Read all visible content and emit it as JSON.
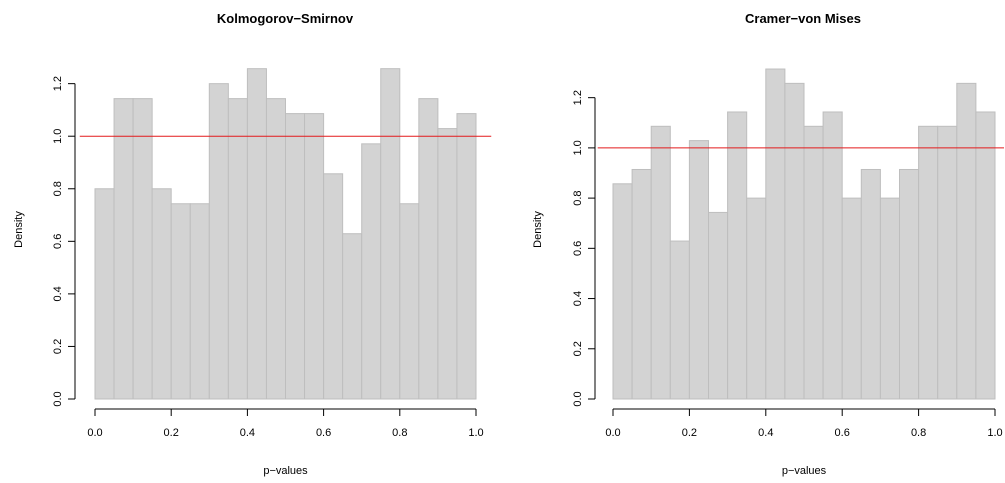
{
  "chart_data": [
    {
      "type": "bar",
      "title": "Kolmogorov−Smirnov",
      "xlabel": "p−values",
      "ylabel": "Density",
      "bin_edges": [
        0.0,
        0.05,
        0.1,
        0.15,
        0.2,
        0.25,
        0.3,
        0.35,
        0.4,
        0.45,
        0.5,
        0.55,
        0.6,
        0.65,
        0.7,
        0.75,
        0.8,
        0.85,
        0.9,
        0.95,
        1.0
      ],
      "values": [
        0.8,
        1.143,
        1.143,
        0.8,
        0.743,
        0.743,
        1.2,
        1.143,
        1.257,
        1.143,
        1.086,
        1.086,
        0.857,
        0.629,
        0.971,
        1.257,
        0.743,
        1.143,
        1.029,
        1.086
      ],
      "reference_line": 1.0,
      "xticks": [
        0.0,
        0.2,
        0.4,
        0.6,
        0.8,
        1.0
      ],
      "xtick_labels": [
        "0.0",
        "0.2",
        "0.4",
        "0.6",
        "0.8",
        "1.0"
      ],
      "yticks": [
        0.0,
        0.2,
        0.4,
        0.6,
        0.8,
        1.0,
        1.2
      ],
      "ytick_labels": [
        "0.0",
        "0.2",
        "0.4",
        "0.6",
        "0.8",
        "1.0",
        "1.2"
      ],
      "xlim": [
        -0.04,
        1.04
      ],
      "ylim": [
        0.0,
        1.29
      ],
      "grid": false,
      "colors": {
        "bar_fill": "#d3d3d3",
        "bar_edge": "#bebebe",
        "reference": "#e31a1c"
      }
    },
    {
      "type": "bar",
      "title": "Cramer−von Mises",
      "xlabel": "p−values",
      "ylabel": "Density",
      "bin_edges": [
        0.0,
        0.05,
        0.1,
        0.15,
        0.2,
        0.25,
        0.3,
        0.35,
        0.4,
        0.45,
        0.5,
        0.55,
        0.6,
        0.65,
        0.7,
        0.75,
        0.8,
        0.85,
        0.9,
        0.95,
        1.0
      ],
      "values": [
        0.857,
        0.914,
        1.086,
        0.629,
        1.029,
        0.743,
        1.143,
        0.8,
        1.314,
        1.257,
        1.086,
        1.143,
        0.8,
        0.914,
        0.8,
        0.914,
        1.086,
        1.086,
        1.257,
        1.143
      ],
      "reference_line": 1.0,
      "xticks": [
        0.0,
        0.2,
        0.4,
        0.6,
        0.8,
        1.0
      ],
      "xtick_labels": [
        "0.0",
        "0.2",
        "0.4",
        "0.6",
        "0.8",
        "1.0"
      ],
      "yticks": [
        0.0,
        0.2,
        0.4,
        0.6,
        0.8,
        1.0,
        1.2
      ],
      "ytick_labels": [
        "0.0",
        "0.2",
        "0.4",
        "0.6",
        "0.8",
        "1.0",
        "1.2"
      ],
      "xlim": [
        -0.04,
        1.04
      ],
      "ylim": [
        0.0,
        1.35
      ],
      "grid": false,
      "colors": {
        "bar_fill": "#d3d3d3",
        "bar_edge": "#bebebe",
        "reference": "#e31a1c"
      }
    }
  ]
}
